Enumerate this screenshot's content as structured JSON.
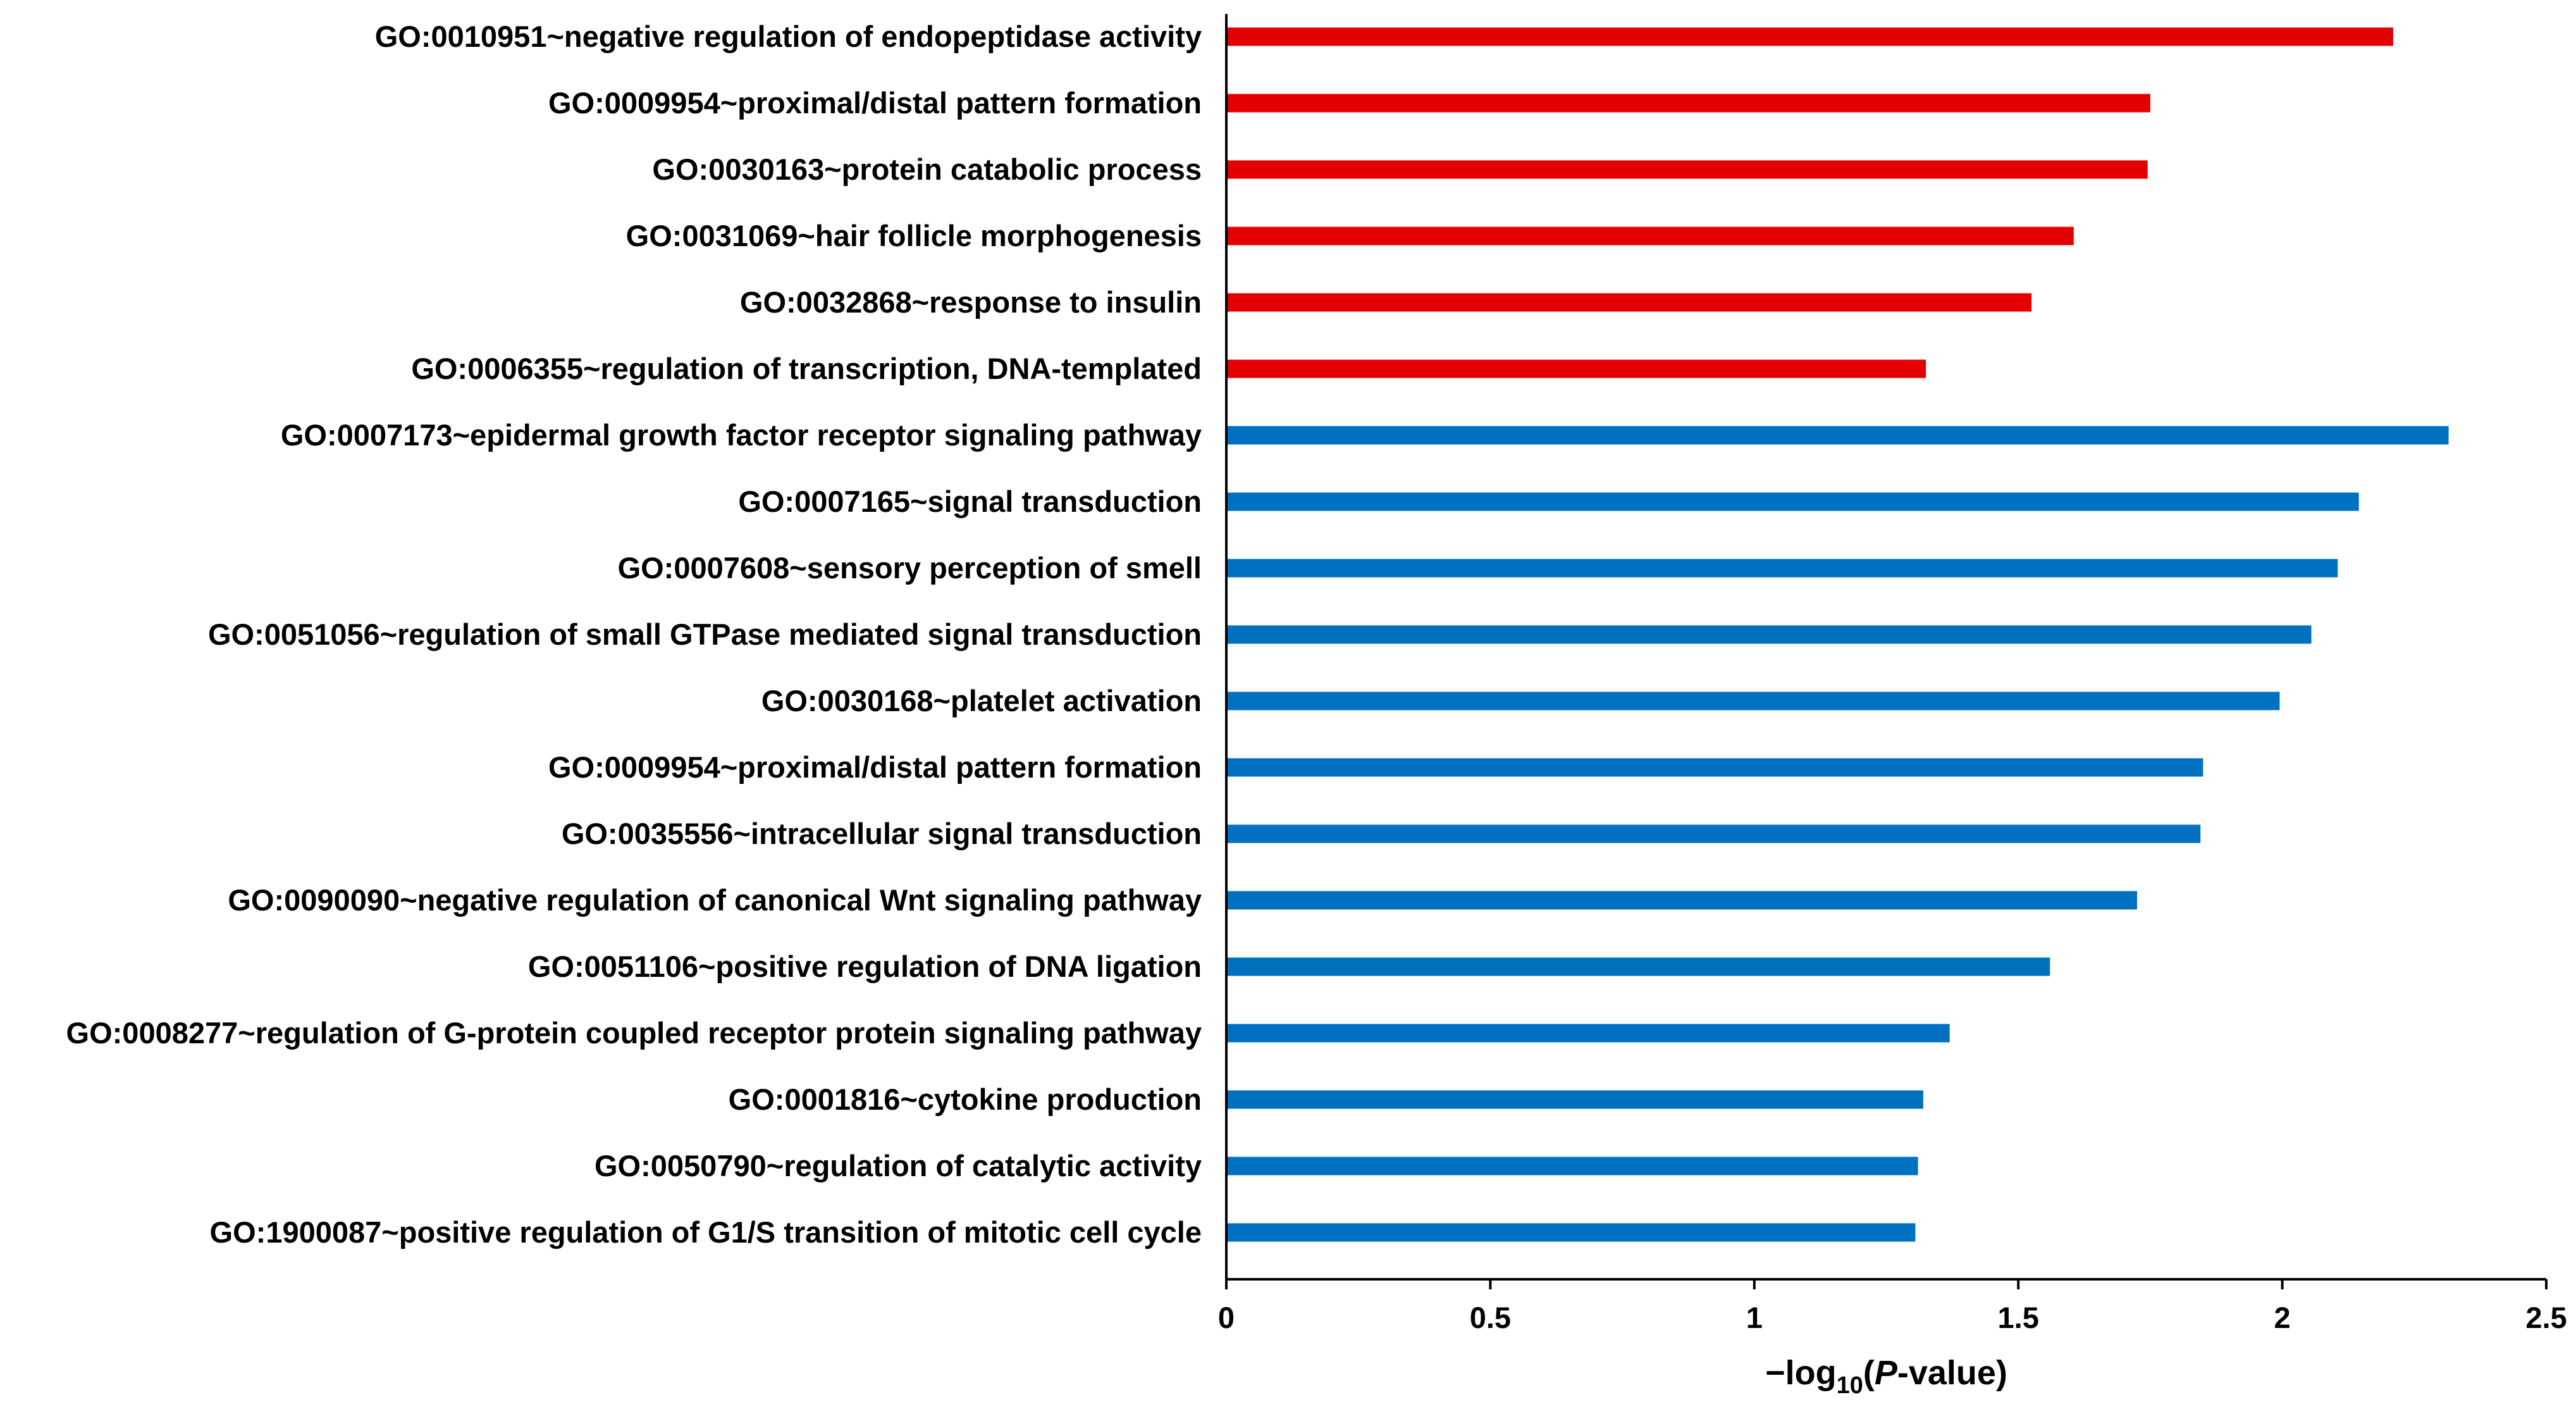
{
  "chart_data": {
    "type": "bar",
    "orientation": "horizontal",
    "title": "",
    "xlabel": {
      "prefix": "−log",
      "subscript": "10",
      "open": "(",
      "italic": "P",
      "suffix": "-value)"
    },
    "ylabel": "",
    "xlim": [
      0,
      2.5
    ],
    "xticks": [
      0,
      0.5,
      1,
      1.5,
      2,
      2.5
    ],
    "xtick_labels": [
      "0",
      "0.5",
      "1",
      "1.5",
      "2",
      "2.5"
    ],
    "grid": false,
    "legend": "none",
    "series_colors": {
      "red": "#e30000",
      "blue": "#0070c0"
    },
    "bars": [
      {
        "label": "GO:0010951~negative regulation of endopeptidase activity",
        "value": 2.21,
        "color": "red"
      },
      {
        "label": "GO:0009954~proximal/distal pattern formation",
        "value": 1.75,
        "color": "red"
      },
      {
        "label": "GO:0030163~protein catabolic process",
        "value": 1.745,
        "color": "red"
      },
      {
        "label": "GO:0031069~hair follicle morphogenesis",
        "value": 1.605,
        "color": "red"
      },
      {
        "label": "GO:0032868~response to insulin",
        "value": 1.525,
        "color": "red"
      },
      {
        "label": "GO:0006355~regulation of transcription, DNA-templated",
        "value": 1.325,
        "color": "red"
      },
      {
        "label": "GO:0007173~epidermal growth factor receptor signaling pathway",
        "value": 2.315,
        "color": "blue"
      },
      {
        "label": "GO:0007165~signal transduction",
        "value": 2.145,
        "color": "blue"
      },
      {
        "label": "GO:0007608~sensory perception of smell",
        "value": 2.105,
        "color": "blue"
      },
      {
        "label": "GO:0051056~regulation of small GTPase mediated signal transduction",
        "value": 2.055,
        "color": "blue"
      },
      {
        "label": "GO:0030168~platelet activation",
        "value": 1.995,
        "color": "blue"
      },
      {
        "label": "GO:0009954~proximal/distal pattern formation",
        "value": 1.85,
        "color": "blue"
      },
      {
        "label": "GO:0035556~intracellular signal transduction",
        "value": 1.845,
        "color": "blue"
      },
      {
        "label": "GO:0090090~negative regulation of canonical Wnt signaling pathway",
        "value": 1.725,
        "color": "blue"
      },
      {
        "label": "GO:0051106~positive regulation of DNA ligation",
        "value": 1.56,
        "color": "blue"
      },
      {
        "label": "GO:0008277~regulation of G-protein coupled receptor protein signaling pathway",
        "value": 1.37,
        "color": "blue"
      },
      {
        "label": "GO:0001816~cytokine production",
        "value": 1.32,
        "color": "blue"
      },
      {
        "label": "GO:0050790~regulation of catalytic activity",
        "value": 1.31,
        "color": "blue"
      },
      {
        "label": "GO:1900087~positive regulation of G1/S transition of mitotic cell cycle",
        "value": 1.305,
        "color": "blue"
      }
    ]
  }
}
